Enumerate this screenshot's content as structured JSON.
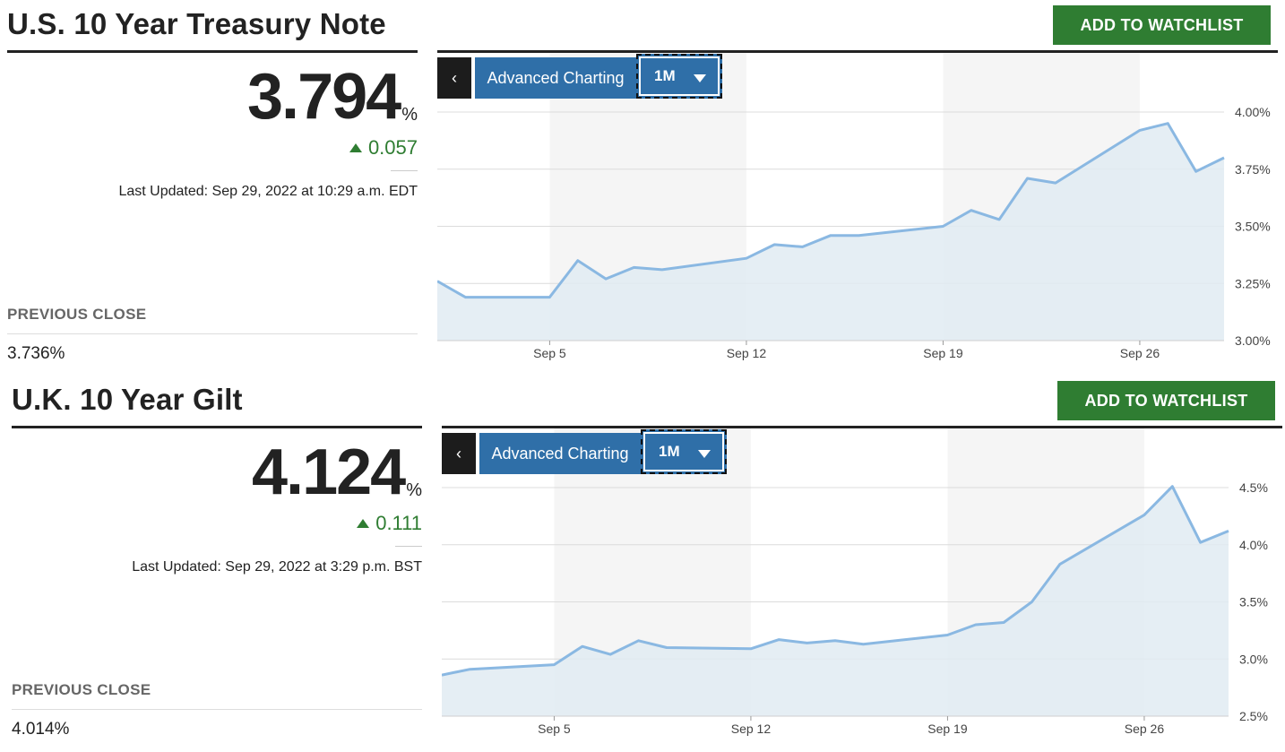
{
  "panels": [
    {
      "title": "U.S. 10 Year Treasury Note",
      "watchlist_label": "ADD TO WATCHLIST",
      "price": "3.794",
      "price_unit": "%",
      "change": "0.057",
      "last_updated": "Last Updated: Sep 29, 2022 at 10:29 a.m. EDT",
      "previous_close_label": "PREVIOUS CLOSE",
      "previous_close": "3.736%",
      "toolbar": {
        "advanced_label": "Advanced Charting",
        "range_label": "1M"
      }
    },
    {
      "title": "U.K. 10 Year Gilt",
      "watchlist_label": "ADD TO WATCHLIST",
      "price": "4.124",
      "price_unit": "%",
      "change": "0.111",
      "last_updated": "Last Updated: Sep 29, 2022 at 3:29 p.m. BST",
      "previous_close_label": "PREVIOUS CLOSE",
      "previous_close": "4.014%",
      "toolbar": {
        "advanced_label": "Advanced Charting",
        "range_label": "1M"
      }
    }
  ],
  "colors": {
    "accent_green": "#2f7d32",
    "chart_line": "#8ab8e2",
    "chart_fill": "#e1ebf2",
    "button_blue": "#2f6fa8"
  },
  "chart_data": [
    {
      "type": "area",
      "x": [
        "2022-09-01",
        "2022-09-02",
        "2022-09-05",
        "2022-09-06",
        "2022-09-07",
        "2022-09-08",
        "2022-09-09",
        "2022-09-12",
        "2022-09-13",
        "2022-09-14",
        "2022-09-15",
        "2022-09-16",
        "2022-09-19",
        "2022-09-20",
        "2022-09-21",
        "2022-09-22",
        "2022-09-23",
        "2022-09-26",
        "2022-09-27",
        "2022-09-28",
        "2022-09-29"
      ],
      "values": [
        3.26,
        3.19,
        3.19,
        3.35,
        3.27,
        3.32,
        3.31,
        3.36,
        3.42,
        3.41,
        3.46,
        3.46,
        3.5,
        3.57,
        3.53,
        3.71,
        3.69,
        3.92,
        3.95,
        3.74,
        3.8
      ],
      "x_range": [
        "2022-09-01",
        "2022-09-29"
      ],
      "ylim": [
        3.0,
        4.0
      ],
      "x_tick_labels": [
        {
          "date": "2022-09-05",
          "label": "Sep 5"
        },
        {
          "date": "2022-09-12",
          "label": "Sep 12"
        },
        {
          "date": "2022-09-19",
          "label": "Sep 19"
        },
        {
          "date": "2022-09-26",
          "label": "Sep 26"
        }
      ],
      "y_ticks": [
        3.0,
        3.25,
        3.5,
        3.75,
        4.0
      ],
      "y_tick_labels": [
        "3.00%",
        "3.25%",
        "3.50%",
        "3.75%",
        "4.00%"
      ],
      "grid": true,
      "shaded_weeks": [
        [
          "2022-09-05",
          "2022-09-12"
        ],
        [
          "2022-09-19",
          "2022-09-26"
        ]
      ]
    },
    {
      "type": "area",
      "x": [
        "2022-09-01",
        "2022-09-02",
        "2022-09-05",
        "2022-09-06",
        "2022-09-07",
        "2022-09-08",
        "2022-09-09",
        "2022-09-12",
        "2022-09-13",
        "2022-09-14",
        "2022-09-15",
        "2022-09-16",
        "2022-09-19",
        "2022-09-20",
        "2022-09-21",
        "2022-09-22",
        "2022-09-23",
        "2022-09-26",
        "2022-09-27",
        "2022-09-28",
        "2022-09-29"
      ],
      "values": [
        2.86,
        2.91,
        2.95,
        3.11,
        3.04,
        3.16,
        3.1,
        3.09,
        3.17,
        3.14,
        3.16,
        3.13,
        3.21,
        3.3,
        3.32,
        3.5,
        3.83,
        4.26,
        4.51,
        4.02,
        4.12
      ],
      "x_range": [
        "2022-09-01",
        "2022-09-29"
      ],
      "ylim": [
        2.5,
        4.5
      ],
      "x_tick_labels": [
        {
          "date": "2022-09-05",
          "label": "Sep 5"
        },
        {
          "date": "2022-09-12",
          "label": "Sep 12"
        },
        {
          "date": "2022-09-19",
          "label": "Sep 19"
        },
        {
          "date": "2022-09-26",
          "label": "Sep 26"
        }
      ],
      "y_ticks": [
        2.5,
        3.0,
        3.5,
        4.0,
        4.5
      ],
      "y_tick_labels": [
        "2.5%",
        "3.0%",
        "3.5%",
        "4.0%",
        "4.5%"
      ],
      "grid": true,
      "shaded_weeks": [
        [
          "2022-09-05",
          "2022-09-12"
        ],
        [
          "2022-09-19",
          "2022-09-26"
        ]
      ]
    }
  ]
}
